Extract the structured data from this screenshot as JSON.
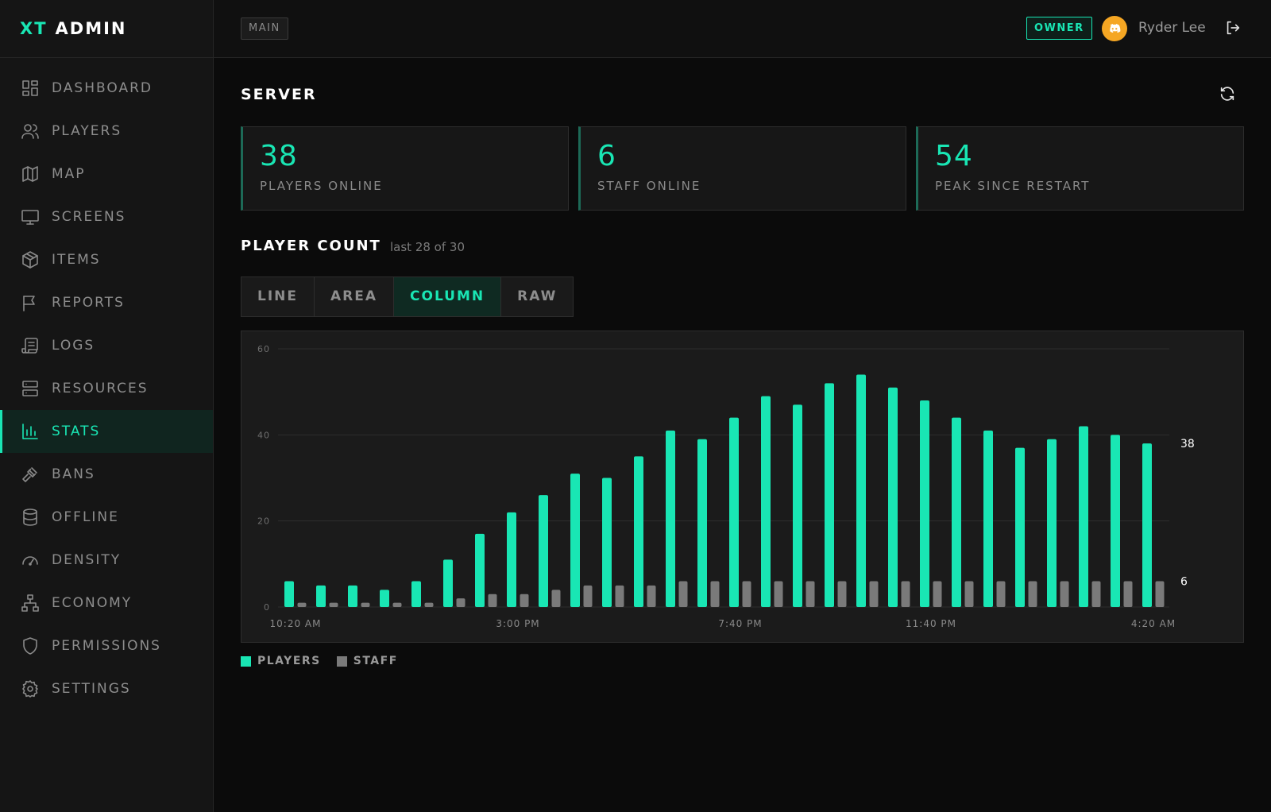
{
  "brand": {
    "accent": "XT",
    "rest": "ADMIN"
  },
  "sidebar": {
    "items": [
      {
        "label": "DASHBOARD",
        "icon": "dashboard-icon"
      },
      {
        "label": "PLAYERS",
        "icon": "users-icon"
      },
      {
        "label": "MAP",
        "icon": "map-icon"
      },
      {
        "label": "SCREENS",
        "icon": "monitor-icon"
      },
      {
        "label": "ITEMS",
        "icon": "box-icon"
      },
      {
        "label": "REPORTS",
        "icon": "flag-icon"
      },
      {
        "label": "LOGS",
        "icon": "scroll-icon"
      },
      {
        "label": "RESOURCES",
        "icon": "server-icon"
      },
      {
        "label": "STATS",
        "icon": "bar-chart-icon",
        "active": true
      },
      {
        "label": "BANS",
        "icon": "hammer-icon"
      },
      {
        "label": "OFFLINE",
        "icon": "database-icon"
      },
      {
        "label": "DENSITY",
        "icon": "gauge-icon"
      },
      {
        "label": "ECONOMY",
        "icon": "network-icon"
      },
      {
        "label": "PERMISSIONS",
        "icon": "shield-icon"
      },
      {
        "label": "SETTINGS",
        "icon": "gear-icon"
      }
    ]
  },
  "header": {
    "breadcrumb": "MAIN",
    "role": "OWNER",
    "avatar_icon": "discord-icon",
    "username": "Ryder Lee",
    "logout_icon": "logout-icon"
  },
  "main": {
    "title": "SERVER",
    "refresh_icon": "refresh-icon",
    "stats": [
      {
        "value": "38",
        "label": "PLAYERS ONLINE"
      },
      {
        "value": "6",
        "label": "STAFF ONLINE"
      },
      {
        "value": "54",
        "label": "PEAK SINCE RESTART"
      }
    ],
    "chart_title": "PLAYER COUNT",
    "chart_subtitle": "last 28 of 30",
    "tabs": [
      {
        "label": "LINE",
        "active": false
      },
      {
        "label": "AREA",
        "active": false
      },
      {
        "label": "COLUMN",
        "active": true
      },
      {
        "label": "RAW",
        "active": false
      }
    ]
  },
  "colors": {
    "accent": "#19e6b4",
    "staff": "#7a7a7a",
    "active_bg": "#10251f"
  },
  "chart_data": {
    "type": "bar",
    "title": "",
    "xlabel": "",
    "ylabel": "",
    "ylim": [
      0,
      60
    ],
    "yticks": [
      0,
      20,
      40,
      60
    ],
    "grid": true,
    "x_tick_labels": [
      {
        "index": 0,
        "label": "10:20 AM"
      },
      {
        "index": 7,
        "label": "3:00 PM"
      },
      {
        "index": 14,
        "label": "7:40 PM"
      },
      {
        "index": 20,
        "label": "11:40 PM"
      },
      {
        "index": 27,
        "label": "4:20 AM"
      }
    ],
    "series": [
      {
        "name": "PLAYERS",
        "color": "#19e6b4",
        "values": [
          6,
          5,
          5,
          4,
          6,
          11,
          17,
          22,
          26,
          31,
          30,
          35,
          41,
          39,
          44,
          49,
          47,
          52,
          54,
          51,
          48,
          44,
          41,
          37,
          39,
          42,
          40,
          38
        ]
      },
      {
        "name": "STAFF",
        "color": "#7a7a7a",
        "values": [
          1,
          1,
          1,
          1,
          1,
          2,
          3,
          3,
          4,
          5,
          5,
          5,
          6,
          6,
          6,
          6,
          6,
          6,
          6,
          6,
          6,
          6,
          6,
          6,
          6,
          6,
          6,
          6
        ]
      }
    ],
    "last_value_labels": [
      "38",
      "6"
    ],
    "legend": {
      "position": "bottom-left",
      "entries": [
        "PLAYERS",
        "STAFF"
      ]
    }
  }
}
